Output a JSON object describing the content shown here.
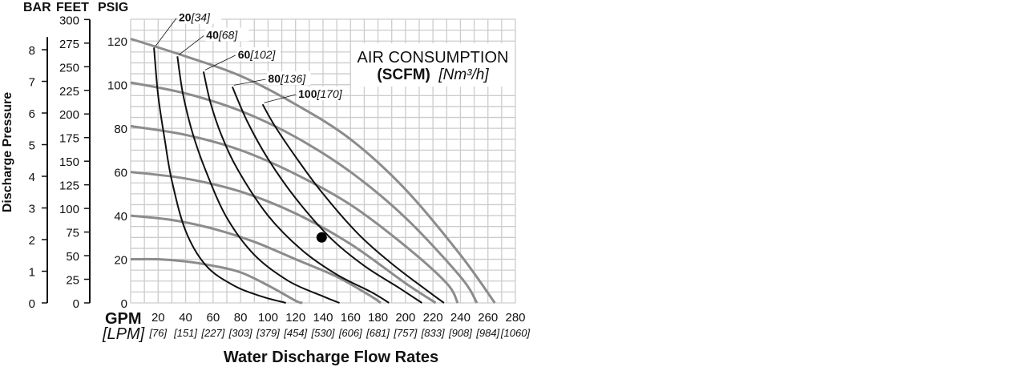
{
  "headers": {
    "bar": "BAR",
    "feet": "FEET",
    "psig": "PSIG"
  },
  "ylabel": "Discharge Pressure",
  "xlabel": "Water Discharge Flow Rates",
  "gpm_label": "GPM",
  "lpm_label": "[LPM]",
  "legend": {
    "line1": "AIR CONSUMPTION",
    "bold": "(SCFM)",
    "italic": "[Nm³/h]"
  },
  "bar_ticks": [
    "0",
    "1",
    "2",
    "3",
    "4",
    "5",
    "6",
    "7",
    "8"
  ],
  "feet_ticks": [
    "0",
    "25",
    "50",
    "75",
    "100",
    "125",
    "150",
    "175",
    "200",
    "225",
    "250",
    "275",
    "300"
  ],
  "colors": {
    "pressure_curve": "#8c8c8c",
    "air_curve": "#111111",
    "grid": "#cccccc",
    "point": "#000000"
  },
  "chart_data": {
    "type": "line",
    "x_unit": "GPM",
    "y_unit": "PSIG",
    "xlim": [
      0,
      280
    ],
    "ylim": [
      0,
      130
    ],
    "grid": true,
    "x_ticks": [
      20,
      40,
      60,
      80,
      100,
      120,
      140,
      160,
      180,
      200,
      220,
      240,
      260,
      280
    ],
    "x_tick_labels": [
      "20",
      "40",
      "60",
      "80",
      "100",
      "120",
      "140",
      "160",
      "180",
      "200",
      "220",
      "240",
      "260",
      "280"
    ],
    "x_tick_lpm": [
      "[76]",
      "[151]",
      "[227]",
      "[303]",
      "[379]",
      "[454]",
      "[530]",
      "[606]",
      "[681]",
      "[757]",
      "[833]",
      "[908]",
      "[984]",
      "[1060]"
    ],
    "y_ticks": [
      0,
      20,
      40,
      60,
      80,
      100,
      120
    ],
    "y_tick_labels": [
      "0",
      "20",
      "40",
      "60",
      "80",
      "100",
      "120"
    ],
    "pressure_curves": [
      {
        "points": [
          [
            0,
            20
          ],
          [
            20,
            20
          ],
          [
            40,
            19
          ],
          [
            60,
            17
          ],
          [
            80,
            14
          ],
          [
            100,
            8
          ],
          [
            120,
            1
          ],
          [
            125,
            0
          ]
        ]
      },
      {
        "points": [
          [
            0,
            40
          ],
          [
            30,
            38
          ],
          [
            60,
            34
          ],
          [
            90,
            28
          ],
          [
            120,
            20
          ],
          [
            150,
            12
          ],
          [
            175,
            3
          ],
          [
            182,
            0
          ]
        ]
      },
      {
        "points": [
          [
            0,
            60
          ],
          [
            40,
            57
          ],
          [
            80,
            51
          ],
          [
            120,
            41
          ],
          [
            160,
            27
          ],
          [
            200,
            9
          ],
          [
            222,
            0
          ]
        ]
      },
      {
        "points": [
          [
            0,
            81
          ],
          [
            40,
            77
          ],
          [
            80,
            70
          ],
          [
            120,
            59
          ],
          [
            160,
            45
          ],
          [
            200,
            26
          ],
          [
            230,
            9
          ],
          [
            238,
            0
          ]
        ]
      },
      {
        "points": [
          [
            0,
            101
          ],
          [
            40,
            96
          ],
          [
            80,
            88
          ],
          [
            120,
            76
          ],
          [
            160,
            60
          ],
          [
            200,
            39
          ],
          [
            240,
            12
          ],
          [
            252,
            0
          ]
        ]
      },
      {
        "points": [
          [
            0,
            121
          ],
          [
            40,
            113
          ],
          [
            80,
            104
          ],
          [
            120,
            91
          ],
          [
            160,
            75
          ],
          [
            200,
            52
          ],
          [
            240,
            22
          ],
          [
            265,
            0
          ]
        ]
      }
    ],
    "air_curves": [
      {
        "label_bold": "20",
        "label_italic": "[34]",
        "label_at": [
          35,
          129
        ],
        "points": [
          [
            17,
            117
          ],
          [
            20,
            95
          ],
          [
            25,
            74
          ],
          [
            30,
            56
          ],
          [
            40,
            33
          ],
          [
            55,
            17
          ],
          [
            75,
            8
          ],
          [
            95,
            3
          ],
          [
            113,
            0
          ]
        ]
      },
      {
        "label_bold": "40",
        "label_italic": "[68]",
        "label_at": [
          55,
          121
        ],
        "points": [
          [
            34,
            113
          ],
          [
            38,
            96
          ],
          [
            45,
            78
          ],
          [
            55,
            60
          ],
          [
            70,
            39
          ],
          [
            90,
            22
          ],
          [
            115,
            10
          ],
          [
            140,
            3
          ],
          [
            152,
            0
          ]
        ]
      },
      {
        "label_bold": "60",
        "label_italic": "[102]",
        "label_at": [
          78,
          112
        ],
        "points": [
          [
            53,
            106
          ],
          [
            58,
            92
          ],
          [
            66,
            77
          ],
          [
            78,
            61
          ],
          [
            100,
            40
          ],
          [
            125,
            24
          ],
          [
            150,
            13
          ],
          [
            175,
            5
          ],
          [
            188,
            0
          ]
        ]
      },
      {
        "label_bold": "80",
        "label_italic": "[136]",
        "label_at": [
          100,
          101
        ],
        "points": [
          [
            74,
            99
          ],
          [
            85,
            83
          ],
          [
            100,
            66
          ],
          [
            120,
            48
          ],
          [
            145,
            30
          ],
          [
            170,
            17
          ],
          [
            195,
            7
          ],
          [
            212,
            0
          ]
        ]
      },
      {
        "label_bold": "100",
        "label_italic": "[170]",
        "label_at": [
          122,
          94
        ],
        "points": [
          [
            96,
            91
          ],
          [
            105,
            81
          ],
          [
            120,
            67
          ],
          [
            140,
            50
          ],
          [
            165,
            32
          ],
          [
            190,
            18
          ],
          [
            215,
            6
          ],
          [
            228,
            0
          ]
        ]
      }
    ],
    "operating_point": [
      139,
      30
    ]
  }
}
